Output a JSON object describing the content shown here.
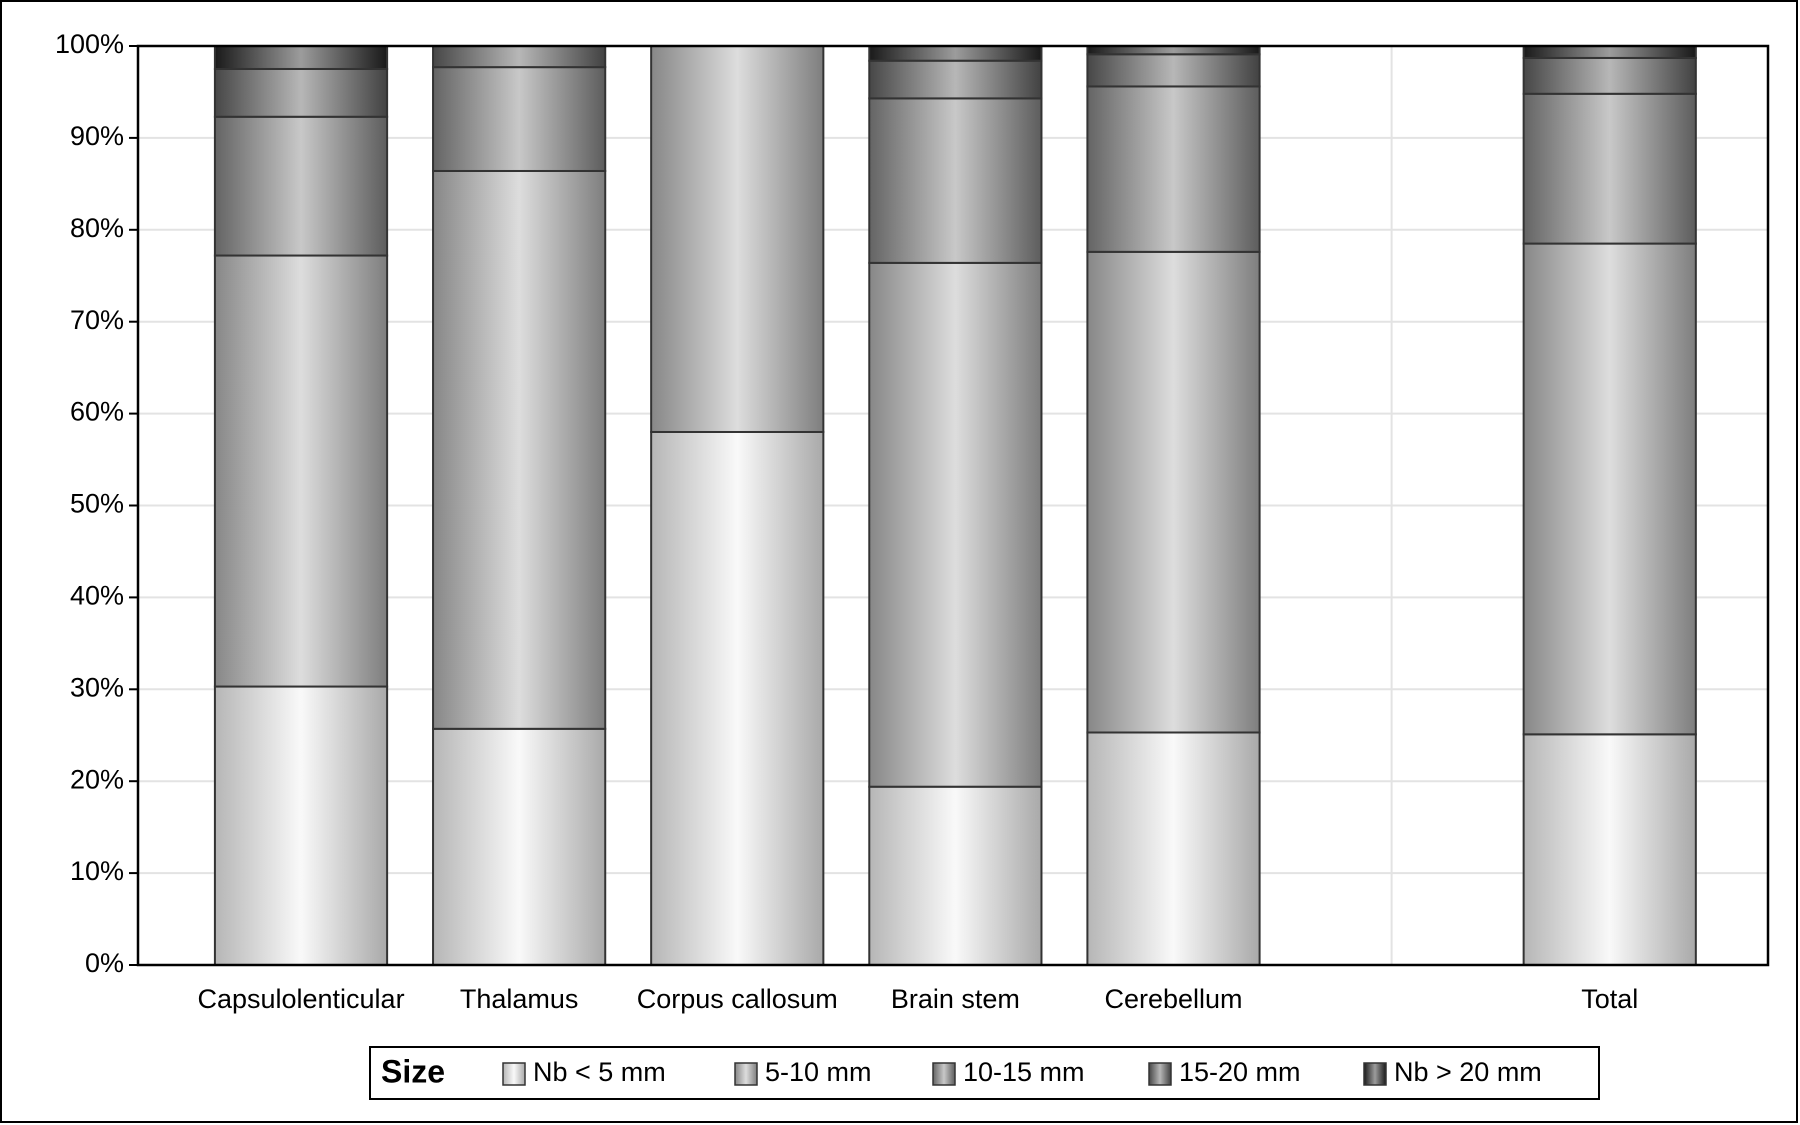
{
  "chart_data": {
    "type": "stacked_bar",
    "categories": [
      "Capsulolenticular",
      "Thalamus",
      "Corpus callosum",
      "Brain stem",
      "Cerebellum",
      null,
      "Total"
    ],
    "series": [
      {
        "name": "Nb < 5 mm",
        "color": "#f2f2f2",
        "values": [
          30.3,
          25.7,
          58,
          19.4,
          25.3,
          null,
          25.1
        ]
      },
      {
        "name": "5-10 mm",
        "color": "#b4b4b4",
        "values": [
          46.9,
          60.7,
          42,
          57.0,
          52.3,
          null,
          53.4
        ]
      },
      {
        "name": "10-15 mm",
        "color": "#858585",
        "values": [
          15.1,
          11.3,
          0,
          17.9,
          18.0,
          null,
          16.3
        ]
      },
      {
        "name": "15-20 mm",
        "color": "#5e5e5e",
        "values": [
          5.2,
          2.3,
          0,
          4.1,
          3.5,
          null,
          3.9
        ]
      },
      {
        "name": "Nb > 20 mm",
        "color": "#232323",
        "values": [
          2.5,
          0,
          0,
          1.6,
          0.9,
          null,
          1.3
        ]
      }
    ],
    "legend_title": "Size",
    "ylim": [
      0,
      100
    ],
    "yticks": [
      {
        "value": 0,
        "label": "0%"
      },
      {
        "value": 10,
        "label": "10%"
      },
      {
        "value": 20,
        "label": "20%"
      },
      {
        "value": 30,
        "label": "30%"
      },
      {
        "value": 40,
        "label": "40%"
      },
      {
        "value": 50,
        "label": "50%"
      },
      {
        "value": 60,
        "label": "60%"
      },
      {
        "value": 70,
        "label": "70%"
      },
      {
        "value": 80,
        "label": "80%"
      },
      {
        "value": 90,
        "label": "90%"
      },
      {
        "value": 100,
        "label": "100%"
      }
    ],
    "grid": true,
    "legend": "bottom"
  }
}
